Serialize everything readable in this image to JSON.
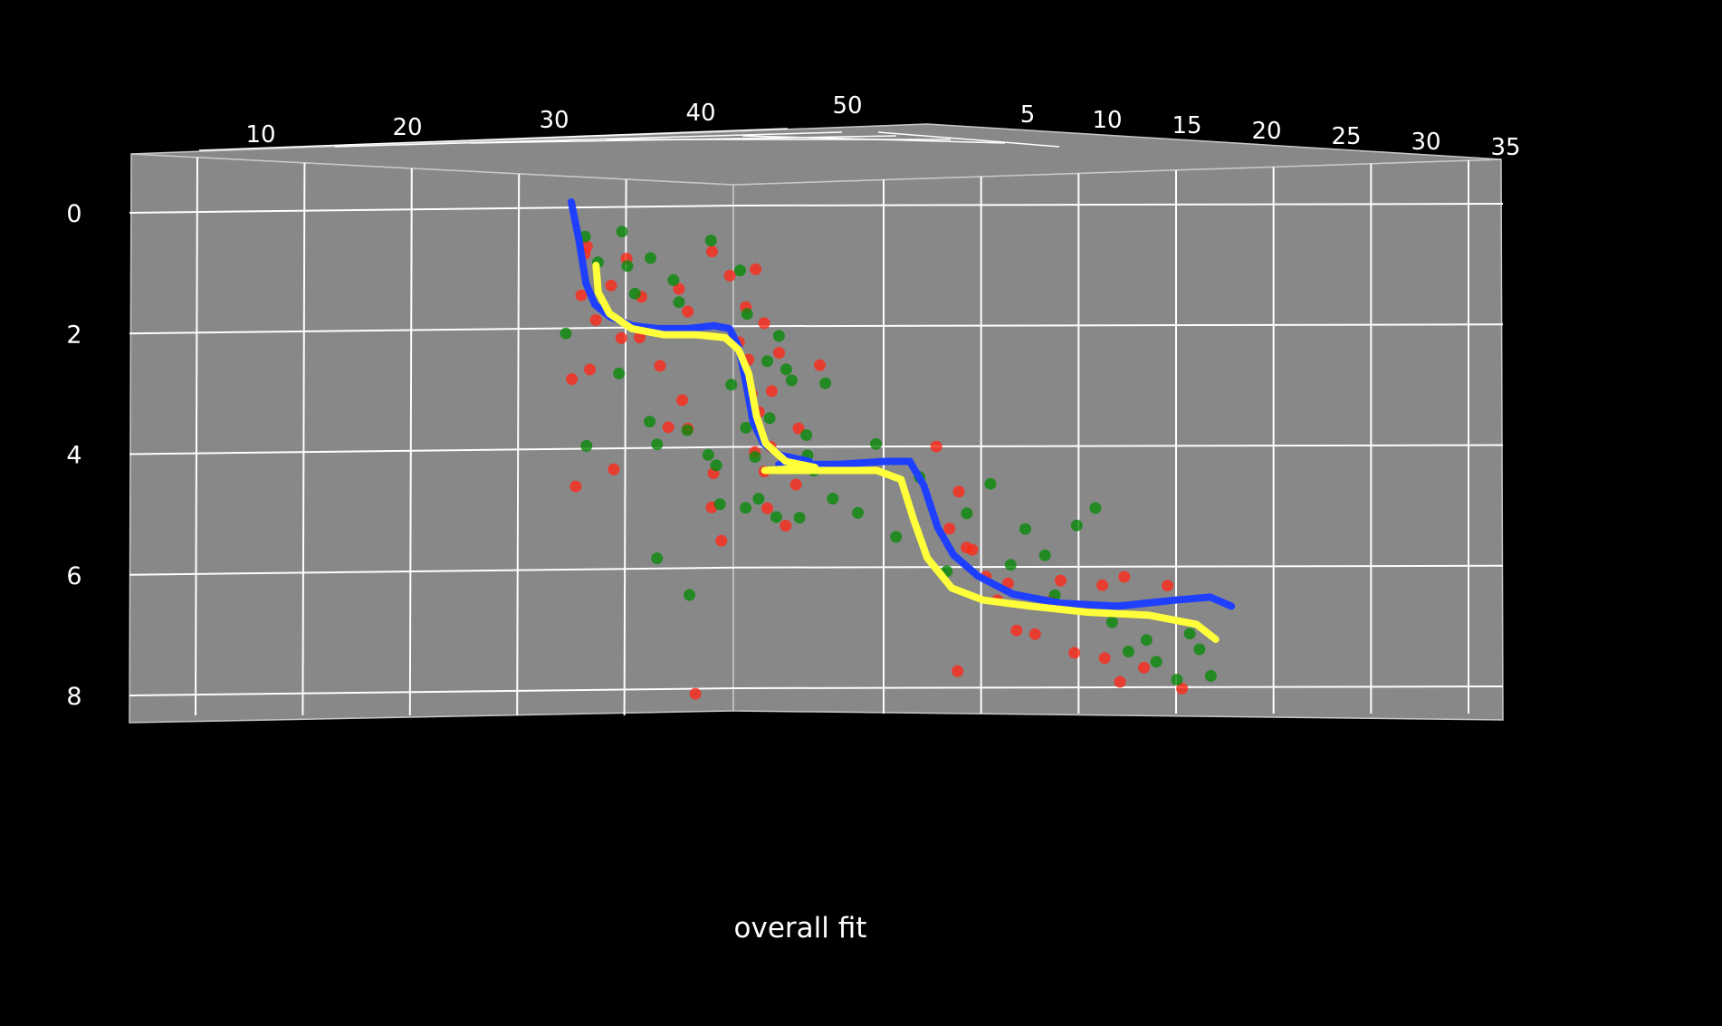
{
  "caption": "overall fit",
  "colors": {
    "background": "#000000",
    "pane": "#888888",
    "grid": "#ffffff",
    "points_a": "#ff2a1a",
    "points_b": "#0a8a0a",
    "fit_1": "#1f3fff",
    "fit_2": "#ffff3a"
  },
  "chart_data": {
    "type": "scatter",
    "projection": "3d",
    "title": "",
    "x_axis": {
      "label": "",
      "ticks": [
        "10",
        "20",
        "30",
        "40",
        "50"
      ],
      "range": [
        0,
        55
      ]
    },
    "y_axis": {
      "label": "",
      "ticks": [
        "5",
        "10",
        "15",
        "20",
        "25",
        "30",
        "35"
      ],
      "range": [
        0,
        36
      ]
    },
    "z_axis": {
      "label": "",
      "ticks": [
        "0",
        "2",
        "4",
        "6",
        "8"
      ],
      "range": [
        -1,
        8.5
      ],
      "inverted": true
    },
    "grid": true,
    "point_groups": [
      {
        "color": "#ff2a1a",
        "points": [
          [
            31.6,
            22.1,
            0.55
          ],
          [
            32.1,
            5.1,
            0.7
          ],
          [
            33.8,
            21.0,
            1.2
          ],
          [
            30.8,
            29.3,
            1.35
          ],
          [
            33.1,
            4.5,
            1.8
          ],
          [
            35.4,
            3.8,
            2.1
          ],
          [
            32.1,
            16.3,
            2.6
          ],
          [
            30.3,
            21.0,
            2.75
          ],
          [
            36.1,
            27.1,
            2.05
          ],
          [
            39.7,
            24.4,
            1.25
          ],
          [
            41.1,
            9.4,
            1.65
          ],
          [
            38.6,
            9.9,
            2.55
          ],
          [
            43.1,
            13.3,
            0.65
          ],
          [
            44.7,
            12.9,
            1.05
          ],
          [
            45.6,
            25.9,
            1.55
          ],
          [
            47.1,
            10.3,
            0.95
          ],
          [
            48.1,
            4.5,
            1.85
          ],
          [
            49.6,
            0.3,
            2.35
          ],
          [
            40.1,
            21.7,
            3.1
          ],
          [
            41.3,
            4.4,
            3.6
          ],
          [
            42.6,
            28.8,
            4.3
          ],
          [
            43.3,
            7.3,
            4.9
          ],
          [
            44.1,
            9.2,
            5.45
          ],
          [
            46.3,
            21.3,
            3.0
          ],
          [
            46.3,
            28.4,
            3.95
          ],
          [
            47.8,
            12.1,
            4.3
          ],
          [
            48.1,
            21.2,
            2.95
          ],
          [
            49.8,
            9.8,
            5.2
          ],
          [
            51.3,
            1.0,
            3.6
          ],
          [
            53.1,
            3.4,
            2.55
          ],
          [
            0.2,
            14.7,
            2.15
          ],
          [
            0.8,
            7.8,
            2.45
          ],
          [
            1.3,
            19.2,
            3.3
          ],
          [
            2.1,
            3.9,
            3.9
          ],
          [
            1.8,
            16.4,
            4.9
          ],
          [
            3.4,
            20.8,
            4.5
          ],
          [
            34.1,
            19.4,
            4.25
          ],
          [
            31.1,
            9.8,
            4.55
          ],
          [
            11.6,
            2.0,
            3.9
          ],
          [
            12.9,
            0.4,
            4.65
          ],
          [
            12.3,
            7.8,
            5.25
          ],
          [
            13.6,
            9.2,
            5.6
          ],
          [
            14.4,
            6.0,
            6.05
          ],
          [
            15.1,
            0.9,
            6.45
          ],
          [
            15.6,
            13.9,
            6.15
          ],
          [
            16.2,
            1.6,
            6.95
          ],
          [
            13.2,
            17.3,
            5.55
          ],
          [
            12.7,
            15.5,
            7.6
          ],
          [
            17.2,
            7.9,
            7.0
          ],
          [
            18.1,
            10.6,
            6.45
          ],
          [
            18.6,
            15.2,
            6.1
          ],
          [
            19.4,
            13.6,
            7.3
          ],
          [
            20.1,
            2.6,
            6.55
          ],
          [
            21.1,
            2.2,
            6.2
          ],
          [
            21.2,
            6.3,
            7.4
          ],
          [
            22.1,
            3.3,
            7.8
          ],
          [
            22.3,
            8.5,
            6.05
          ],
          [
            23.4,
            11.6,
            7.55
          ],
          [
            24.8,
            5.6,
            6.2
          ],
          [
            25.6,
            9.3,
            7.9
          ],
          [
            42.1,
            1.3,
            8.0
          ],
          [
            38.9,
            20.8,
            3.55
          ],
          [
            36.8,
            13.6,
            1.4
          ],
          [
            35.1,
            22.9,
            0.75
          ]
        ]
      },
      {
        "color": "#0a8a0a",
        "points": [
          [
            31.7,
            15.3,
            0.4
          ],
          [
            33.4,
            1.7,
            0.85
          ],
          [
            34.6,
            25.2,
            0.3
          ],
          [
            36.3,
            11.6,
            1.35
          ],
          [
            37.4,
            18.6,
            0.75
          ],
          [
            39.1,
            27.4,
            1.1
          ],
          [
            40.4,
            7.2,
            1.5
          ],
          [
            42.6,
            23.3,
            0.45
          ],
          [
            45.3,
            20.8,
            0.95
          ],
          [
            46.6,
            3.9,
            1.7
          ],
          [
            47.6,
            23.8,
            2.45
          ],
          [
            49.1,
            12.3,
            2.05
          ],
          [
            29.9,
            17.6,
            2.0
          ],
          [
            31.4,
            26.1,
            3.85
          ],
          [
            34.3,
            25.9,
            2.65
          ],
          [
            37.1,
            24.3,
            3.45
          ],
          [
            38.3,
            10.9,
            3.85
          ],
          [
            40.6,
            20.6,
            3.6
          ],
          [
            42.3,
            24.8,
            4.0
          ],
          [
            43.6,
            10.1,
            4.2
          ],
          [
            44.1,
            6.0,
            4.85
          ],
          [
            45.6,
            26.3,
            3.55
          ],
          [
            46.8,
            16.3,
            4.05
          ],
          [
            47.3,
            11.9,
            4.75
          ],
          [
            48.8,
            13.8,
            5.05
          ],
          [
            50.6,
            20.6,
            5.05
          ],
          [
            52.1,
            0.9,
            4.05
          ],
          [
            53.6,
            3.2,
            2.85
          ],
          [
            0.6,
            11.9,
            4.9
          ],
          [
            1.9,
            20.3,
            3.4
          ],
          [
            3.3,
            4.3,
            2.8
          ],
          [
            4.1,
            9.2,
            3.7
          ],
          [
            4.6,
            0.8,
            4.3
          ],
          [
            5.6,
            10.5,
            4.75
          ],
          [
            7.1,
            2.6,
            5.0
          ],
          [
            8.1,
            6.9,
            3.85
          ],
          [
            9.3,
            1.5,
            5.4
          ],
          [
            2.9,
            14.8,
            2.6
          ],
          [
            10.6,
            6.8,
            4.4
          ],
          [
            38.6,
            3.4,
            5.75
          ],
          [
            41.3,
            8.1,
            6.35
          ],
          [
            12.1,
            13.3,
            5.95
          ],
          [
            13.3,
            7.4,
            5.0
          ],
          [
            14.6,
            12.7,
            4.5
          ],
          [
            15.8,
            8.3,
            5.85
          ],
          [
            16.6,
            13.0,
            5.25
          ],
          [
            17.8,
            3.9,
            5.7
          ],
          [
            18.3,
            11.3,
            6.35
          ],
          [
            19.6,
            6.4,
            5.2
          ],
          [
            20.6,
            14.0,
            4.9
          ],
          [
            21.6,
            9.2,
            6.8
          ],
          [
            22.6,
            1.5,
            7.3
          ],
          [
            23.6,
            5.6,
            7.1
          ],
          [
            24.1,
            12.4,
            7.45
          ],
          [
            25.3,
            10.4,
            7.75
          ],
          [
            26.1,
            2.6,
            7.0
          ],
          [
            26.6,
            8.9,
            7.25
          ],
          [
            27.3,
            3.1,
            7.7
          ],
          [
            35.8,
            7.3,
            0.9
          ],
          [
            44.6,
            18.6,
            2.85
          ]
        ]
      }
    ],
    "fit_curves": [
      {
        "color": "#1f3fff",
        "points": [
          [
            31.1,
            30.2,
            -0.15
          ],
          [
            31.8,
            30.2,
            0.5
          ],
          [
            32.4,
            30.2,
            1.2
          ],
          [
            33.2,
            30.2,
            1.55
          ],
          [
            34.5,
            30.2,
            1.75
          ],
          [
            36.5,
            30.2,
            1.9
          ],
          [
            38.8,
            30.2,
            1.95
          ],
          [
            41.5,
            30.2,
            1.95
          ],
          [
            43.8,
            30.2,
            1.9
          ],
          [
            45.2,
            30.2,
            1.95
          ],
          [
            46.0,
            30.2,
            2.25
          ],
          [
            46.7,
            30.2,
            2.9
          ],
          [
            47.3,
            30.2,
            3.5
          ],
          [
            48.2,
            30.2,
            3.85
          ],
          [
            49.7,
            30.2,
            4.05
          ],
          [
            52.3,
            30.2,
            4.15
          ],
          [
            2.6,
            30.2,
            4.2
          ],
          [
            6.0,
            30.2,
            4.2
          ],
          [
            8.7,
            30.2,
            4.15
          ],
          [
            10.1,
            30.2,
            4.15
          ],
          [
            10.9,
            30.2,
            4.55
          ],
          [
            11.7,
            30.2,
            5.25
          ],
          [
            12.6,
            30.2,
            5.7
          ],
          [
            14.0,
            30.2,
            6.05
          ],
          [
            16.0,
            30.2,
            6.35
          ],
          [
            18.7,
            30.2,
            6.5
          ],
          [
            22.0,
            30.2,
            6.55
          ],
          [
            25.3,
            30.2,
            6.45
          ],
          [
            27.3,
            30.2,
            6.4
          ],
          [
            28.5,
            30.2,
            6.55
          ]
        ]
      },
      {
        "color": "#ffff3a",
        "points": [
          [
            33.3,
            30.2,
            0.9
          ],
          [
            33.5,
            30.2,
            1.35
          ],
          [
            34.5,
            30.2,
            1.7
          ],
          [
            36.5,
            30.2,
            1.95
          ],
          [
            39.3,
            30.2,
            2.05
          ],
          [
            42.2,
            30.2,
            2.05
          ],
          [
            44.8,
            30.2,
            2.1
          ],
          [
            46.0,
            30.2,
            2.3
          ],
          [
            46.9,
            30.2,
            2.7
          ],
          [
            47.6,
            30.2,
            3.4
          ],
          [
            48.4,
            30.2,
            3.85
          ],
          [
            50.2,
            30.2,
            4.15
          ],
          [
            52.8,
            30.2,
            4.25
          ],
          [
            1.8,
            30.2,
            4.3
          ],
          [
            5.2,
            30.2,
            4.3
          ],
          [
            8.2,
            30.2,
            4.3
          ],
          [
            9.6,
            30.2,
            4.45
          ],
          [
            10.3,
            30.2,
            5.1
          ],
          [
            11.1,
            30.2,
            5.75
          ],
          [
            12.5,
            30.2,
            6.25
          ],
          [
            14.3,
            30.2,
            6.45
          ],
          [
            17.0,
            30.2,
            6.55
          ],
          [
            20.3,
            30.2,
            6.65
          ],
          [
            23.8,
            30.2,
            6.7
          ],
          [
            26.5,
            30.2,
            6.85
          ],
          [
            27.6,
            30.2,
            7.1
          ]
        ]
      }
    ]
  }
}
